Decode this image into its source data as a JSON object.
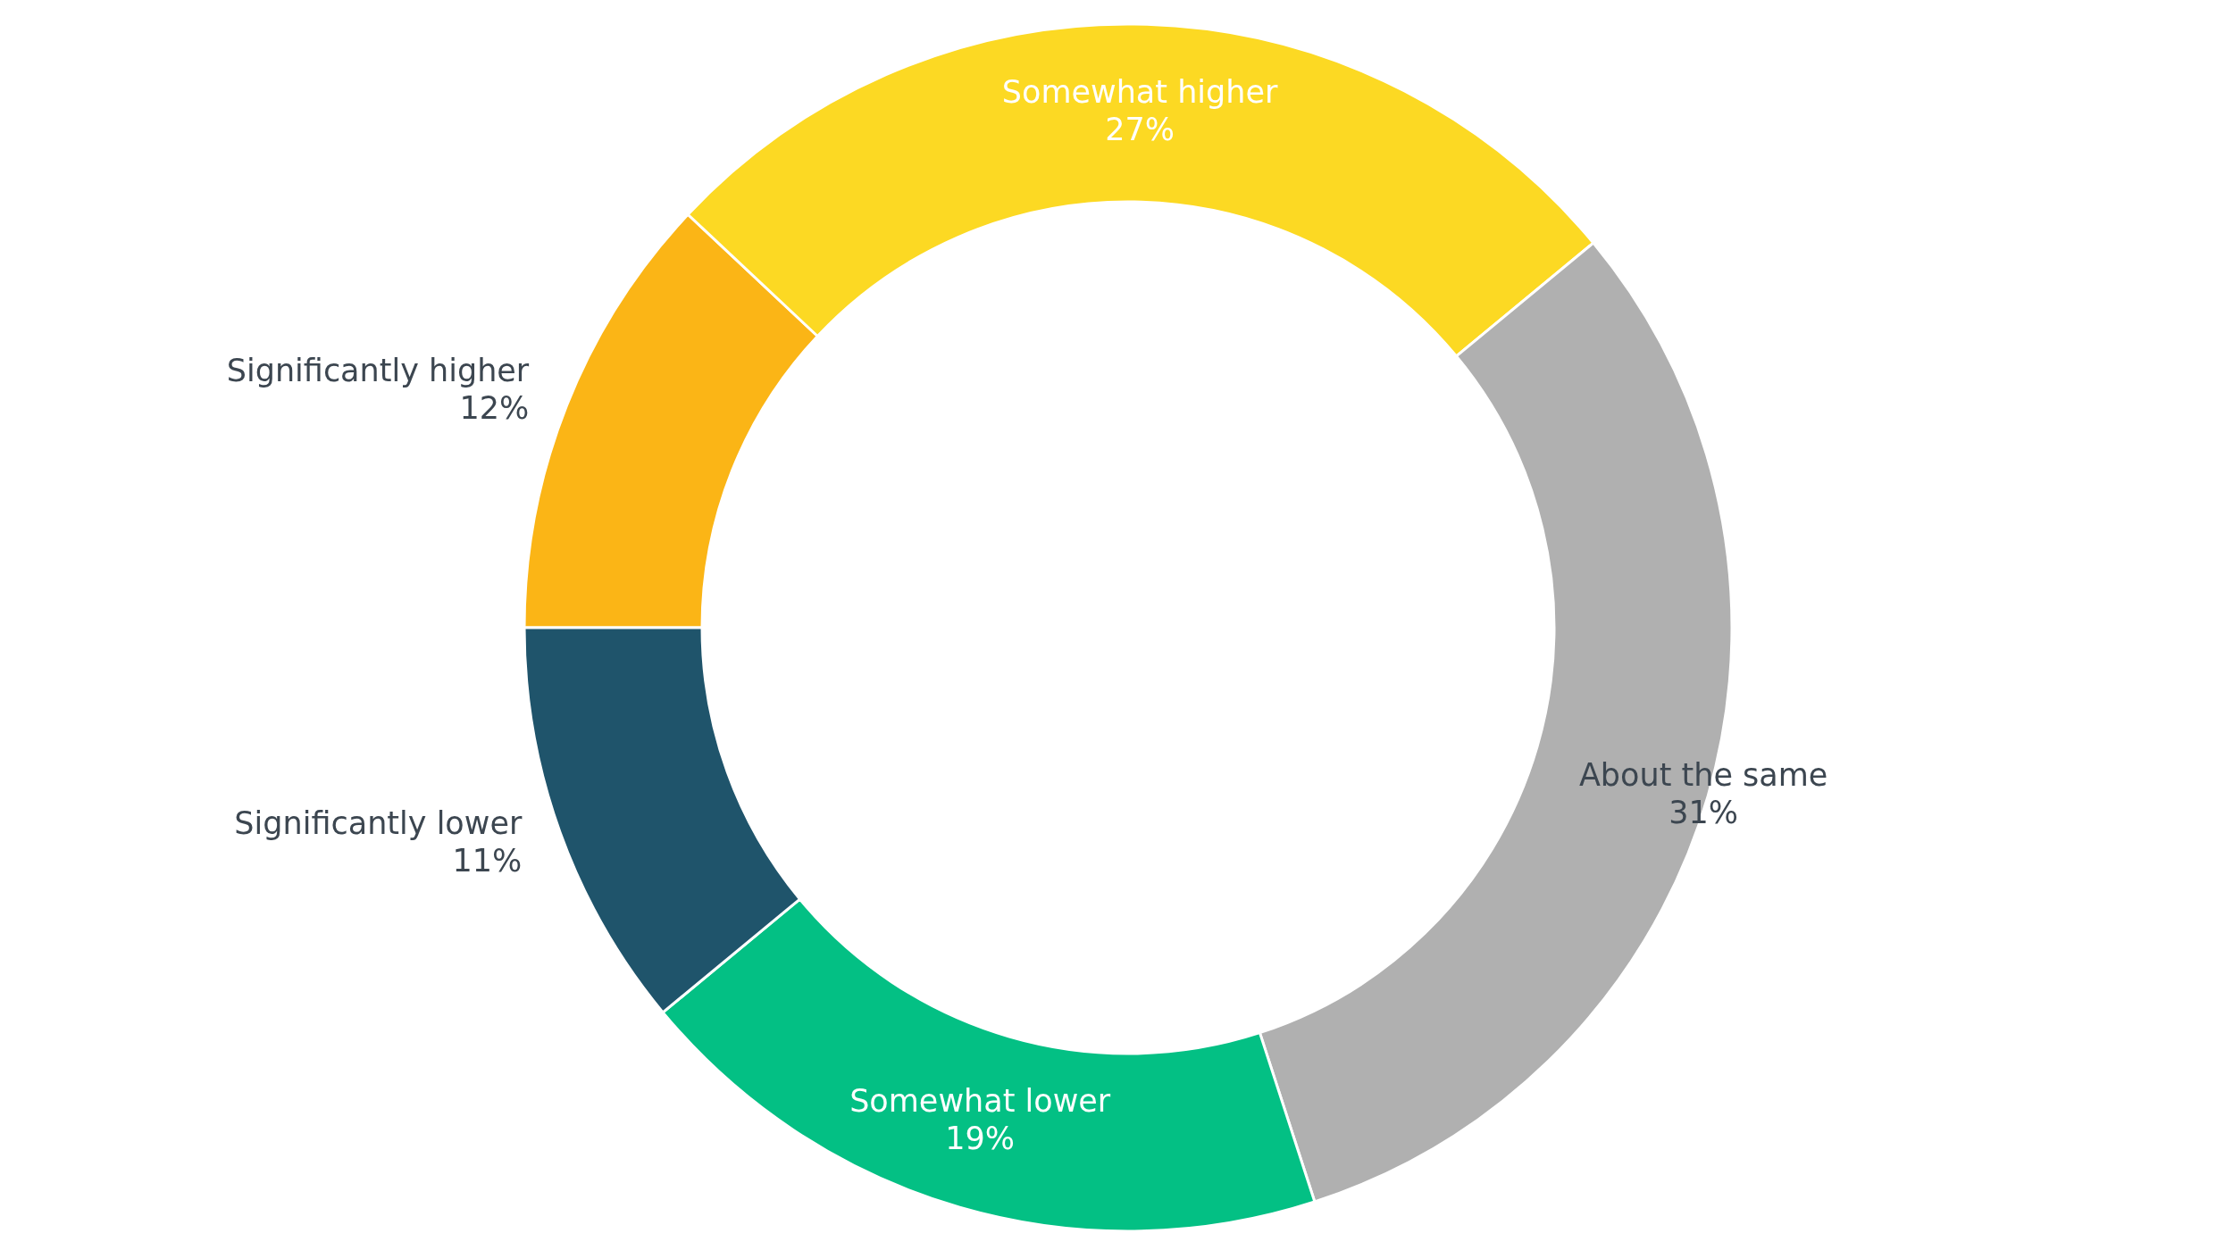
{
  "chart_data": {
    "type": "donut",
    "categories": [
      "Significantly higher",
      "Somewhat higher",
      "About the same",
      "Somewhat lower",
      "Significantly lower"
    ],
    "values": [
      12,
      27,
      31,
      19,
      11
    ],
    "colors": [
      "#fbb516",
      "#fcd923",
      "#b0b0b0",
      "#03c084",
      "#1f546b"
    ],
    "value_labels": [
      "12%",
      "27%",
      "31%",
      "19%",
      "11%"
    ]
  }
}
